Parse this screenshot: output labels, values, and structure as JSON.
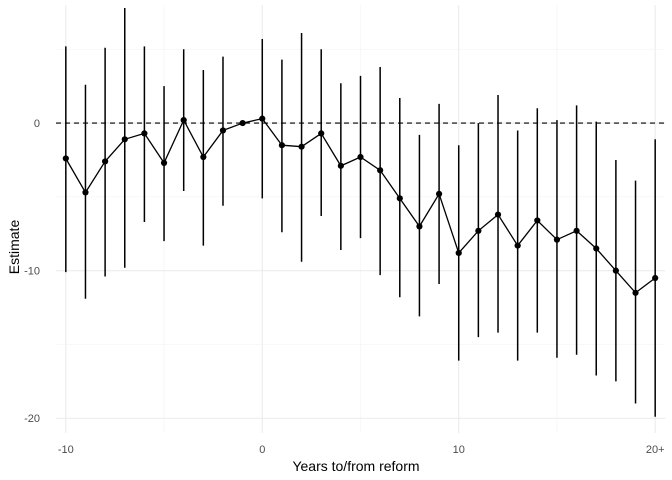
{
  "chart_data": {
    "type": "scatter",
    "title": "",
    "xlabel": "Years to/from reform",
    "ylabel": "Estimate",
    "xlim": [
      -10.5,
      20.5
    ],
    "ylim": [
      -21,
      8
    ],
    "x_ticks": [
      {
        "value": -10,
        "label": "-10"
      },
      {
        "value": 0,
        "label": "0"
      },
      {
        "value": 10,
        "label": "10"
      },
      {
        "value": 20,
        "label": "20+"
      }
    ],
    "y_ticks": [
      {
        "value": -20,
        "label": "-20"
      },
      {
        "value": -10,
        "label": "-10"
      },
      {
        "value": 0,
        "label": "0"
      }
    ],
    "reference_line": {
      "y": 0,
      "style": "dashed"
    },
    "grid": true,
    "legend": "none",
    "series": [
      {
        "points": [
          {
            "x": -10,
            "y": -2.4,
            "lower": -10.1,
            "upper": 5.2
          },
          {
            "x": -9,
            "y": -4.7,
            "lower": -11.9,
            "upper": 2.6
          },
          {
            "x": -8,
            "y": -2.6,
            "lower": -10.4,
            "upper": 5.1
          },
          {
            "x": -7,
            "y": -1.1,
            "lower": -9.8,
            "upper": 7.8
          },
          {
            "x": -6,
            "y": -0.7,
            "lower": -6.7,
            "upper": 5.2
          },
          {
            "x": -5,
            "y": -2.7,
            "lower": -8.0,
            "upper": 2.5
          },
          {
            "x": -4,
            "y": 0.2,
            "lower": -4.6,
            "upper": 5.0
          },
          {
            "x": -3,
            "y": -2.3,
            "lower": -8.3,
            "upper": 3.6
          },
          {
            "x": -2,
            "y": -0.5,
            "lower": -5.6,
            "upper": 4.5
          },
          {
            "x": -1,
            "y": 0.0,
            "lower": 0.0,
            "upper": 0.0
          },
          {
            "x": 0,
            "y": 0.3,
            "lower": -5.1,
            "upper": 5.7
          },
          {
            "x": 1,
            "y": -1.5,
            "lower": -7.4,
            "upper": 4.3
          },
          {
            "x": 2,
            "y": -1.6,
            "lower": -9.4,
            "upper": 6.1
          },
          {
            "x": 3,
            "y": -0.7,
            "lower": -6.3,
            "upper": 5.0
          },
          {
            "x": 4,
            "y": -2.9,
            "lower": -8.6,
            "upper": 2.7
          },
          {
            "x": 5,
            "y": -2.3,
            "lower": -7.8,
            "upper": 3.2
          },
          {
            "x": 6,
            "y": -3.2,
            "lower": -10.3,
            "upper": 3.8
          },
          {
            "x": 7,
            "y": -5.1,
            "lower": -11.8,
            "upper": 1.7
          },
          {
            "x": 8,
            "y": -7.0,
            "lower": -13.1,
            "upper": -0.8
          },
          {
            "x": 9,
            "y": -4.8,
            "lower": -10.9,
            "upper": 1.3
          },
          {
            "x": 10,
            "y": -8.8,
            "lower": -16.1,
            "upper": -1.5
          },
          {
            "x": 11,
            "y": -7.3,
            "lower": -14.5,
            "upper": 0.0
          },
          {
            "x": 12,
            "y": -6.2,
            "lower": -14.2,
            "upper": 1.9
          },
          {
            "x": 13,
            "y": -8.3,
            "lower": -16.1,
            "upper": -0.5
          },
          {
            "x": 14,
            "y": -6.6,
            "lower": -14.2,
            "upper": 1.0
          },
          {
            "x": 15,
            "y": -7.9,
            "lower": -15.9,
            "upper": 0.2
          },
          {
            "x": 16,
            "y": -7.3,
            "lower": -15.7,
            "upper": 1.2
          },
          {
            "x": 17,
            "y": -8.5,
            "lower": -17.1,
            "upper": 0.1
          },
          {
            "x": 18,
            "y": -10.0,
            "lower": -17.5,
            "upper": -2.5
          },
          {
            "x": 19,
            "y": -11.5,
            "lower": -19.0,
            "upper": -3.9
          },
          {
            "x": 20,
            "y": -10.5,
            "lower": -19.9,
            "upper": -1.1
          }
        ]
      }
    ]
  }
}
